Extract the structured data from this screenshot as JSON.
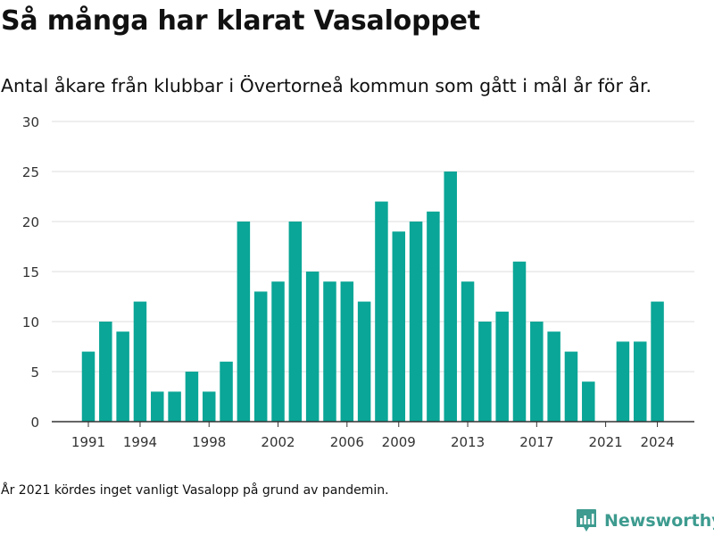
{
  "title": "Så många har klarat Vasaloppet",
  "subtitle": "Antal åkare från klubbar i Övertorneå kommun som gått i mål år för år.",
  "footnote": "År 2021 kördes inget vanligt Vasalopp på grund av pandemin.",
  "brand": {
    "name": "Newsworthy",
    "icon": "newsworthy-logo-icon",
    "color": "#3d9b8f"
  },
  "colors": {
    "bar": "#0aa697",
    "grid": "#dddddd",
    "axis": "#333333",
    "tick_text": "#333333"
  },
  "chart_data": {
    "type": "bar",
    "categories": [
      1991,
      1992,
      1993,
      1994,
      1995,
      1996,
      1997,
      1998,
      1999,
      2000,
      2001,
      2002,
      2003,
      2004,
      2005,
      2006,
      2007,
      2008,
      2009,
      2010,
      2011,
      2012,
      2013,
      2014,
      2015,
      2016,
      2017,
      2018,
      2019,
      2020,
      2021,
      2022,
      2023,
      2024
    ],
    "values": [
      7,
      10,
      9,
      12,
      3,
      3,
      5,
      3,
      6,
      20,
      13,
      14,
      20,
      15,
      14,
      14,
      12,
      22,
      19,
      20,
      21,
      25,
      14,
      10,
      11,
      16,
      10,
      9,
      7,
      4,
      null,
      8,
      8,
      12
    ],
    "x_tick_labels": [
      "1991",
      "1994",
      "1998",
      "2002",
      "2006",
      "2009",
      "2013",
      "2017",
      "2021",
      "2024"
    ],
    "y_ticks": [
      0,
      5,
      10,
      15,
      20,
      25,
      30
    ],
    "ylim": [
      0,
      30
    ],
    "grid": true,
    "xlabel": "",
    "ylabel": ""
  }
}
